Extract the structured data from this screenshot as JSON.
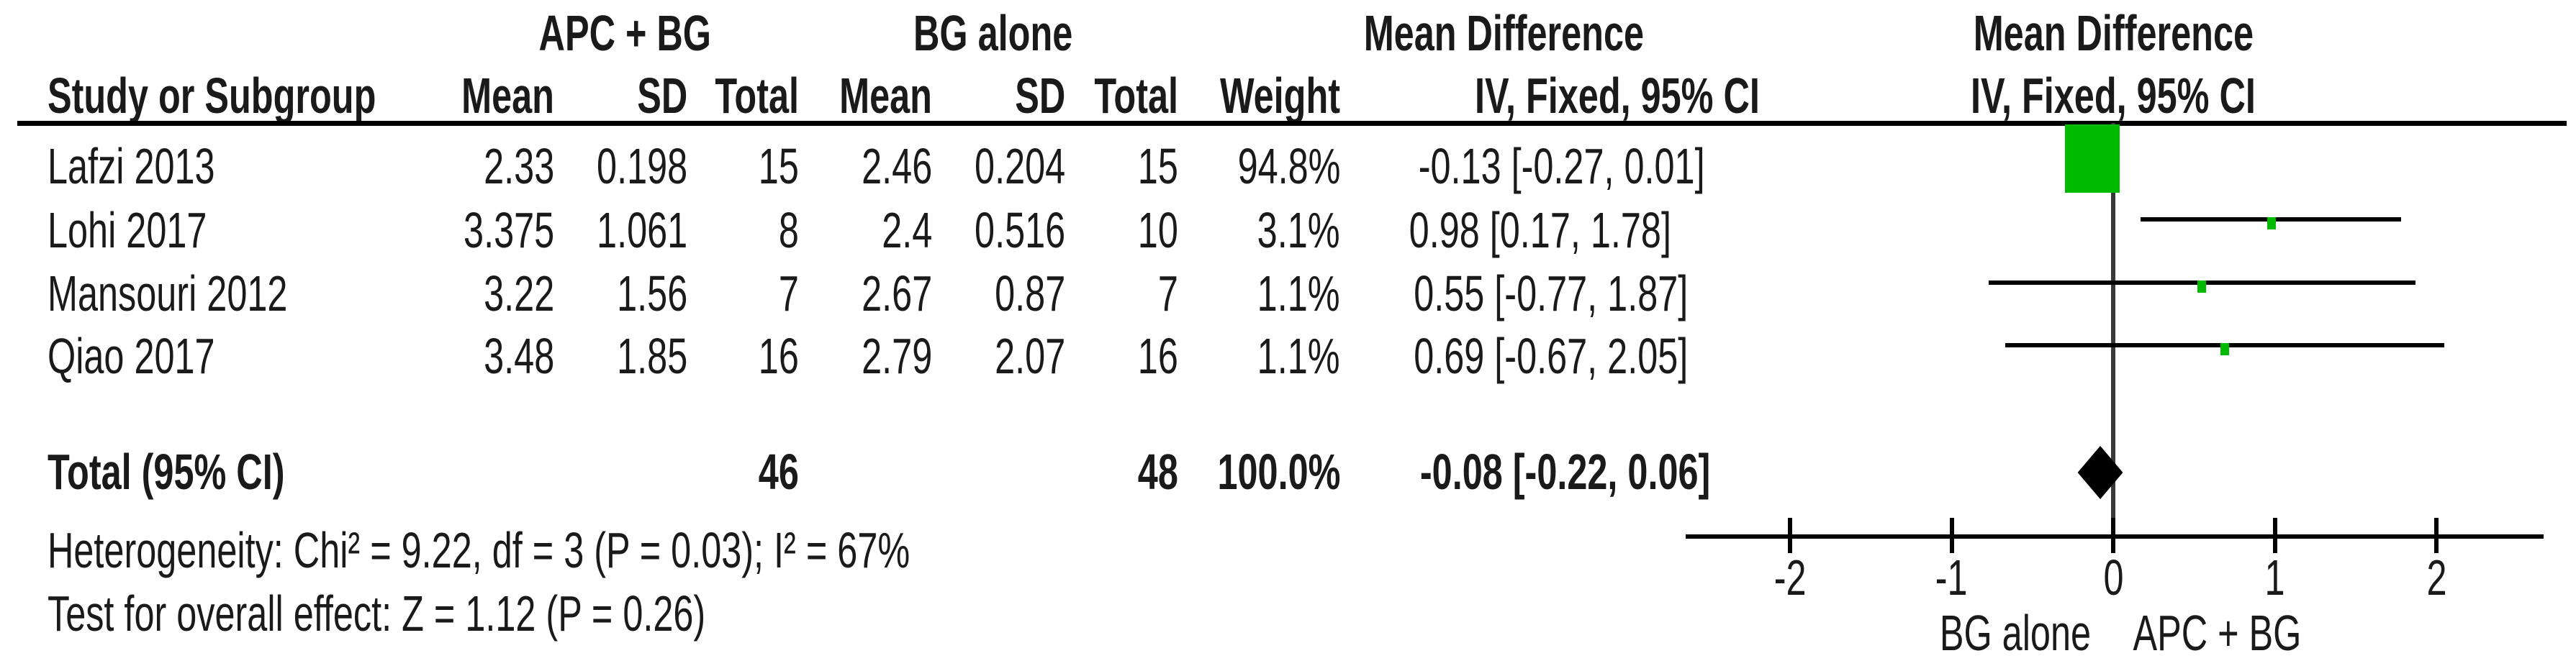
{
  "table": {
    "group1_label": "APC + BG",
    "group2_label": "BG alone",
    "md_header": "Mean Difference",
    "headers": {
      "study": "Study or Subgroup",
      "mean": "Mean",
      "sd": "SD",
      "total": "Total",
      "weight": "Weight",
      "method": "IV, Fixed, 95% CI"
    }
  },
  "chart_data": {
    "type": "forest",
    "effect_measure": "Mean Difference",
    "method": "IV, Fixed, 95% CI",
    "group1_label": "APC + BG",
    "group2_label": "BG alone",
    "studies": [
      {
        "name": "Lafzi 2013",
        "mean1": "2.33",
        "sd1": "0.198",
        "total1": "15",
        "mean2": "2.46",
        "sd2": "0.204",
        "total2": "15",
        "weight": "94.8%",
        "ci_text": "-0.13 [-0.27, 0.01]",
        "md": -0.13,
        "ci_low": -0.27,
        "ci_high": 0.01
      },
      {
        "name": "Lohi 2017",
        "mean1": "3.375",
        "sd1": "1.061",
        "total1": "8",
        "mean2": "2.4",
        "sd2": "0.516",
        "total2": "10",
        "weight": "3.1%",
        "ci_text": "0.98 [0.17, 1.78]",
        "md": 0.98,
        "ci_low": 0.17,
        "ci_high": 1.78
      },
      {
        "name": "Mansouri 2012",
        "mean1": "3.22",
        "sd1": "1.56",
        "total1": "7",
        "mean2": "2.67",
        "sd2": "0.87",
        "total2": "7",
        "weight": "1.1%",
        "ci_text": "0.55 [-0.77, 1.87]",
        "md": 0.55,
        "ci_low": -0.77,
        "ci_high": 1.87
      },
      {
        "name": "Qiao 2017",
        "mean1": "3.48",
        "sd1": "1.85",
        "total1": "16",
        "mean2": "2.79",
        "sd2": "2.07",
        "total2": "16",
        "weight": "1.1%",
        "ci_text": "0.69 [-0.67, 2.05]",
        "md": 0.69,
        "ci_low": -0.67,
        "ci_high": 2.05
      }
    ],
    "total": {
      "label": "Total (95% CI)",
      "total1": "46",
      "total2": "48",
      "weight": "100.0%",
      "ci_text": "-0.08 [-0.22, 0.06]",
      "md": -0.08,
      "ci_low": -0.22,
      "ci_high": 0.06
    },
    "heterogeneity": "Heterogeneity: Chi² = 9.22, df = 3 (P = 0.03); I² = 67%",
    "overall_effect": "Test for overall effect: Z = 1.12 (P = 0.26)",
    "axis": {
      "min": -2,
      "max": 2,
      "ticks": [
        "-2",
        "-1",
        "0",
        "1",
        "2"
      ],
      "tick_values": [
        -2,
        -1,
        0,
        1,
        2
      ],
      "favours_left": "BG alone",
      "favours_right": "APC + BG"
    },
    "colors": {
      "marker": "#00BA00",
      "diamond": "#000000",
      "line": "#000000",
      "zero_line": "#3a3a3a"
    }
  }
}
